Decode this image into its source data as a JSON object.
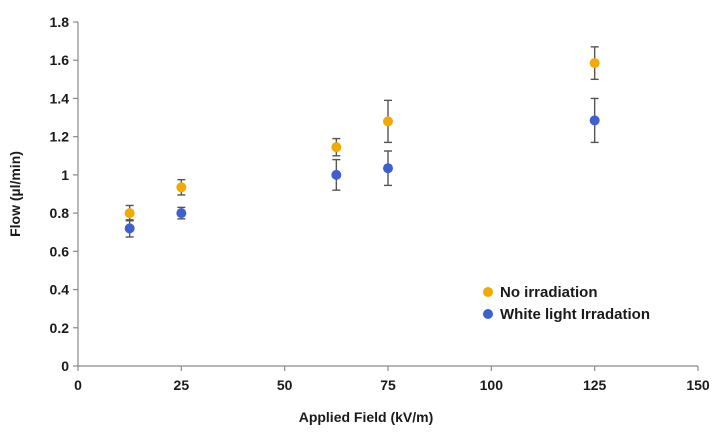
{
  "chart_data": {
    "type": "scatter",
    "title": "",
    "xlabel": "Applied Field (kV/m)",
    "ylabel": "Flow (µl/min)",
    "xlim": [
      0,
      150
    ],
    "ylim": [
      0,
      1.8
    ],
    "xticks": [
      0,
      25,
      50,
      75,
      100,
      125,
      150
    ],
    "yticks": [
      0,
      0.2,
      0.4,
      0.6,
      0.8,
      1,
      1.2,
      1.4,
      1.6,
      1.8
    ],
    "xtick_labels": [
      "0",
      "25",
      "50",
      "75",
      "100",
      "125",
      "150"
    ],
    "ytick_labels": [
      "0",
      "0.2",
      "0.4",
      "0.6",
      "0.8",
      "1",
      "1.2",
      "1.4",
      "1.6",
      "1.8"
    ],
    "grid": false,
    "legend_position": "bottom-right",
    "series": [
      {
        "name": "No irradiation",
        "color": "#f2a900",
        "points": [
          {
            "x": 12.5,
            "y": 0.8,
            "err": 0.04
          },
          {
            "x": 25,
            "y": 0.935,
            "err": 0.04
          },
          {
            "x": 62.5,
            "y": 1.145,
            "err": 0.045
          },
          {
            "x": 75,
            "y": 1.28,
            "err": 0.11
          },
          {
            "x": 125,
            "y": 1.585,
            "err": 0.085
          }
        ]
      },
      {
        "name": "White light Irradation",
        "color": "#3d5fcf",
        "points": [
          {
            "x": 12.5,
            "y": 0.72,
            "err": 0.045
          },
          {
            "x": 25,
            "y": 0.8,
            "err": 0.03
          },
          {
            "x": 62.5,
            "y": 1.0,
            "err": 0.08
          },
          {
            "x": 75,
            "y": 1.035,
            "err": 0.09
          },
          {
            "x": 125,
            "y": 1.285,
            "err": 0.115
          }
        ]
      }
    ]
  }
}
